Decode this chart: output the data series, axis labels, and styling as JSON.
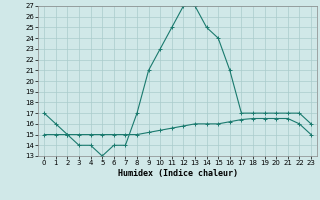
{
  "xlabel": "Humidex (Indice chaleur)",
  "x_values": [
    0,
    1,
    2,
    3,
    4,
    5,
    6,
    7,
    8,
    9,
    10,
    11,
    12,
    13,
    14,
    15,
    16,
    17,
    18,
    19,
    20,
    21,
    22,
    23
  ],
  "line1_y": [
    17,
    16,
    15,
    14,
    14,
    13,
    14,
    14,
    17,
    21,
    23,
    25,
    27,
    27,
    25,
    24,
    21,
    17,
    17,
    17,
    17,
    17,
    17,
    16
  ],
  "line2_y": [
    15,
    15,
    15,
    15,
    15,
    15,
    15,
    15,
    15,
    15.2,
    15.4,
    15.6,
    15.8,
    16,
    16,
    16,
    16.2,
    16.4,
    16.5,
    16.5,
    16.5,
    16.5,
    16,
    15
  ],
  "line1_color": "#1a7a6e",
  "line2_color": "#1a7a6e",
  "bg_color": "#d0e8e8",
  "grid_color": "#aacccc",
  "ylim": [
    13,
    27
  ],
  "xlim": [
    -0.5,
    23.5
  ],
  "yticks": [
    13,
    14,
    15,
    16,
    17,
    18,
    19,
    20,
    21,
    22,
    23,
    24,
    25,
    26,
    27
  ],
  "xticks": [
    0,
    1,
    2,
    3,
    4,
    5,
    6,
    7,
    8,
    9,
    10,
    11,
    12,
    13,
    14,
    15,
    16,
    17,
    18,
    19,
    20,
    21,
    22,
    23
  ],
  "marker": "+",
  "linewidth": 0.8,
  "markersize": 2.5,
  "tick_fontsize": 5,
  "xlabel_fontsize": 6
}
